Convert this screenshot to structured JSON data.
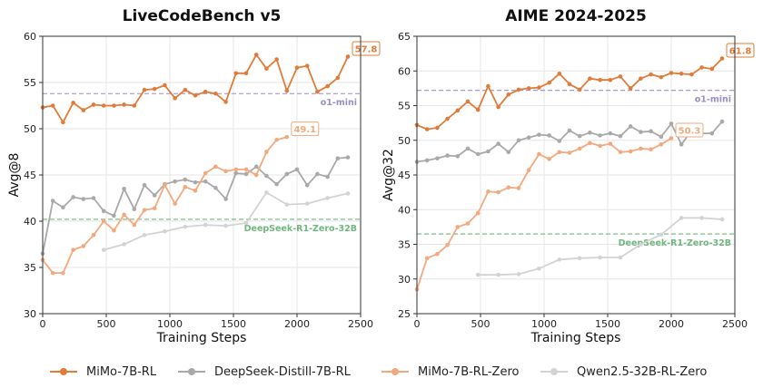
{
  "chart_data": [
    {
      "type": "line",
      "title": "LiveCodeBench v5",
      "xlabel": "Training Steps",
      "ylabel": "Avg@8",
      "xlim": [
        0,
        2500
      ],
      "ylim": [
        30,
        60
      ],
      "xticks": [
        "0",
        "500",
        "1000",
        "1500",
        "2000",
        "2500"
      ],
      "yticks": [
        "30",
        "35",
        "40",
        "45",
        "50",
        "55",
        "60"
      ],
      "grid": true,
      "series": [
        {
          "name": "MiMo-7B-RL",
          "color": "#E07B39",
          "x": [
            0,
            80,
            160,
            240,
            320,
            400,
            480,
            560,
            640,
            720,
            800,
            880,
            960,
            1040,
            1120,
            1200,
            1280,
            1360,
            1440,
            1520,
            1600,
            1680,
            1760,
            1840,
            1920,
            2000,
            2080,
            2160,
            2240,
            2320,
            2400
          ],
          "y": [
            52.3,
            52.5,
            50.7,
            52.8,
            52.0,
            52.6,
            52.5,
            52.5,
            52.6,
            52.5,
            54.2,
            54.3,
            54.7,
            53.3,
            54.2,
            53.6,
            54.0,
            53.8,
            52.9,
            56.0,
            56.0,
            58.0,
            56.5,
            57.5,
            54.1,
            56.6,
            56.8,
            54.0,
            54.6,
            55.5,
            57.8
          ]
        },
        {
          "name": "DeepSeek-Distill-7B-RL",
          "color": "#A9A9A9",
          "x": [
            0,
            80,
            160,
            240,
            320,
            400,
            480,
            560,
            640,
            720,
            800,
            880,
            960,
            1040,
            1120,
            1200,
            1280,
            1360,
            1440,
            1520,
            1600,
            1680,
            1760,
            1840,
            1920,
            2000,
            2080,
            2160,
            2240,
            2320,
            2400
          ],
          "y": [
            36.5,
            42.2,
            41.5,
            42.6,
            42.4,
            42.5,
            41.1,
            40.6,
            43.5,
            41.3,
            43.9,
            42.8,
            44.0,
            44.3,
            44.5,
            44.2,
            44.3,
            43.6,
            42.4,
            45.2,
            45.1,
            45.9,
            44.9,
            44.0,
            45.1,
            45.6,
            43.9,
            45.1,
            44.8,
            46.8,
            46.9
          ]
        },
        {
          "name": "MiMo-7B-RL-Zero",
          "color": "#F2A97E",
          "x": [
            0,
            80,
            160,
            240,
            320,
            400,
            480,
            560,
            640,
            720,
            800,
            880,
            960,
            1040,
            1120,
            1200,
            1280,
            1360,
            1440,
            1520,
            1600,
            1680,
            1760,
            1840,
            1920
          ],
          "y": [
            35.8,
            34.4,
            34.4,
            36.9,
            37.3,
            38.5,
            40.0,
            39.0,
            40.7,
            39.6,
            41.2,
            41.4,
            43.9,
            41.9,
            43.7,
            43.3,
            45.2,
            45.9,
            45.4,
            45.6,
            45.6,
            45.0,
            47.5,
            48.8,
            49.1
          ]
        },
        {
          "name": "Qwen2.5-32B-RL-Zero",
          "color": "#D3D3D3",
          "x": [
            480,
            640,
            800,
            960,
            1120,
            1280,
            1440,
            1600,
            1760,
            1920,
            2080,
            2240,
            2400
          ],
          "y": [
            36.9,
            37.5,
            38.5,
            38.9,
            39.4,
            39.6,
            39.5,
            39.8,
            43.1,
            41.8,
            41.9,
            42.5,
            43.0
          ]
        }
      ],
      "reference_lines": [
        {
          "label": "o1-mini",
          "y": 53.8,
          "color": "#9A8CC8"
        },
        {
          "label": "DeepSeek-R1-Zero-32B",
          "y": 40.2,
          "color": "#6FB77E"
        }
      ],
      "annotations": [
        {
          "text": "57.8",
          "x": 2400,
          "y": 57.8,
          "color": "#E07B39"
        },
        {
          "text": "49.1",
          "x": 1920,
          "y": 49.1,
          "color": "#F2A97E"
        }
      ]
    },
    {
      "type": "line",
      "title": "AIME 2024-2025",
      "xlabel": "Training Steps",
      "ylabel": "Avg@32",
      "xlim": [
        0,
        2500
      ],
      "ylim": [
        25,
        65
      ],
      "xticks": [
        "0",
        "500",
        "1000",
        "1500",
        "2000",
        "2500"
      ],
      "yticks": [
        "25",
        "30",
        "35",
        "40",
        "45",
        "50",
        "55",
        "60",
        "65"
      ],
      "grid": true,
      "series": [
        {
          "name": "MiMo-7B-RL",
          "color": "#E07B39",
          "x": [
            0,
            80,
            160,
            240,
            320,
            400,
            480,
            560,
            640,
            720,
            800,
            880,
            960,
            1040,
            1120,
            1200,
            1280,
            1360,
            1440,
            1520,
            1600,
            1680,
            1760,
            1840,
            1920,
            2000,
            2080,
            2160,
            2240,
            2320,
            2400
          ],
          "y": [
            52.2,
            51.6,
            51.8,
            53.1,
            54.3,
            55.6,
            54.4,
            57.8,
            54.8,
            56.6,
            57.3,
            57.5,
            57.6,
            58.3,
            59.6,
            58.1,
            57.3,
            58.9,
            58.7,
            58.7,
            59.2,
            57.5,
            58.9,
            59.5,
            59.1,
            59.7,
            59.6,
            59.5,
            60.5,
            60.3,
            61.8
          ]
        },
        {
          "name": "DeepSeek-Distill-7B-RL",
          "color": "#A9A9A9",
          "x": [
            0,
            80,
            160,
            240,
            320,
            400,
            480,
            560,
            640,
            720,
            800,
            880,
            960,
            1040,
            1120,
            1200,
            1280,
            1360,
            1440,
            1520,
            1600,
            1680,
            1760,
            1840,
            1920,
            2000,
            2080,
            2160,
            2240,
            2320,
            2400
          ],
          "y": [
            46.9,
            47.1,
            47.4,
            47.8,
            47.7,
            48.8,
            48.0,
            48.4,
            49.5,
            48.3,
            50.0,
            50.4,
            50.8,
            50.7,
            49.9,
            51.4,
            50.6,
            51.1,
            50.7,
            51.0,
            50.6,
            52.0,
            51.2,
            51.3,
            50.5,
            52.4,
            49.4,
            51.4,
            51.0,
            51.0,
            52.7
          ]
        },
        {
          "name": "MiMo-7B-RL-Zero",
          "color": "#F2A97E",
          "x": [
            0,
            80,
            160,
            240,
            320,
            400,
            480,
            560,
            640,
            720,
            800,
            880,
            960,
            1040,
            1120,
            1200,
            1280,
            1360,
            1440,
            1520,
            1600,
            1680,
            1760,
            1840,
            1920,
            2000
          ],
          "y": [
            28.5,
            33.0,
            33.6,
            34.9,
            37.5,
            38.0,
            39.5,
            42.6,
            42.5,
            43.2,
            43.1,
            45.7,
            48.0,
            47.3,
            48.3,
            48.2,
            48.8,
            49.6,
            49.2,
            49.5,
            48.3,
            48.4,
            48.8,
            48.7,
            49.4,
            50.3
          ]
        },
        {
          "name": "Qwen2.5-32B-RL-Zero",
          "color": "#D3D3D3",
          "x": [
            480,
            640,
            800,
            960,
            1120,
            1280,
            1440,
            1600,
            1760,
            1920,
            2080,
            2240,
            2400
          ],
          "y": [
            30.6,
            30.6,
            30.7,
            31.5,
            32.8,
            33.0,
            33.1,
            33.1,
            35.0,
            36.4,
            38.8,
            38.8,
            38.6
          ]
        }
      ],
      "reference_lines": [
        {
          "label": "o1-mini",
          "y": 57.2,
          "color": "#9A8CC8"
        },
        {
          "label": "DeepSeek-R1-Zero-32B",
          "y": 36.5,
          "color": "#6FB77E"
        }
      ],
      "annotations": [
        {
          "text": "61.8",
          "x": 2400,
          "y": 61.8,
          "color": "#E07B39"
        },
        {
          "text": "50.3",
          "x": 2000,
          "y": 50.3,
          "color": "#F2A97E"
        }
      ]
    }
  ],
  "legend": {
    "items": [
      {
        "label": "MiMo-7B-RL",
        "color": "#E07B39"
      },
      {
        "label": "DeepSeek-Distill-7B-RL",
        "color": "#A9A9A9"
      },
      {
        "label": "MiMo-7B-RL-Zero",
        "color": "#F2A97E"
      },
      {
        "label": "Qwen2.5-32B-RL-Zero",
        "color": "#D3D3D3"
      }
    ]
  }
}
